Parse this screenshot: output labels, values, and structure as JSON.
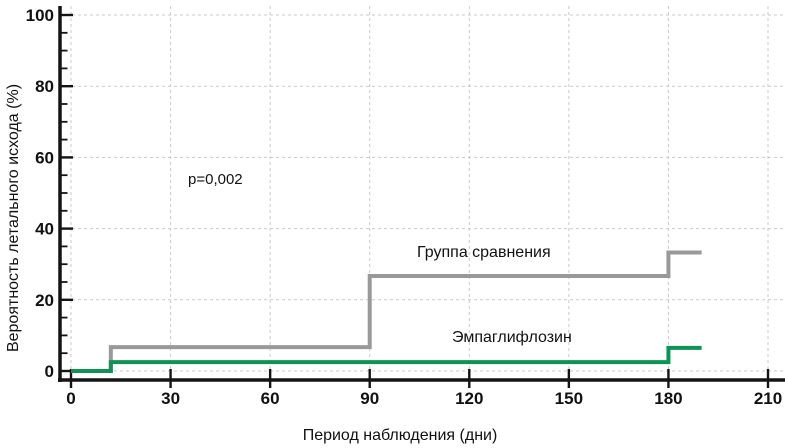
{
  "chart_data": {
    "type": "line",
    "subtype": "step (Kaplan-Meier style survival curve)",
    "title": "",
    "xlabel": "Период наблюдения (дни)",
    "ylabel": "Вероятность летального исхода (%)",
    "xlim": [
      0,
      210
    ],
    "ylim": [
      0,
      100
    ],
    "xticks": [
      0,
      30,
      60,
      90,
      120,
      150,
      180,
      210
    ],
    "yticks": [
      0,
      20,
      40,
      60,
      80,
      100
    ],
    "y_minor_tick_step": 5,
    "grid": "dashed gridlines at all major ticks, both axes",
    "legend_position": "inline text labels above each curve",
    "annotation": "p=0,002",
    "series": [
      {
        "name": "Группа сравнения",
        "color": "#999999",
        "points": [
          {
            "x": 0,
            "y": 0
          },
          {
            "x": 12,
            "y": 6.7
          },
          {
            "x": 90,
            "y": 26.7
          },
          {
            "x": 180,
            "y": 33.3
          },
          {
            "x": 190,
            "y": 33.3
          }
        ]
      },
      {
        "name": "Эмпаглифлозин",
        "color": "#0f9355",
        "points": [
          {
            "x": 0,
            "y": 0
          },
          {
            "x": 12,
            "y": 2.5
          },
          {
            "x": 180,
            "y": 6.5
          },
          {
            "x": 190,
            "y": 6.5
          }
        ]
      }
    ]
  }
}
